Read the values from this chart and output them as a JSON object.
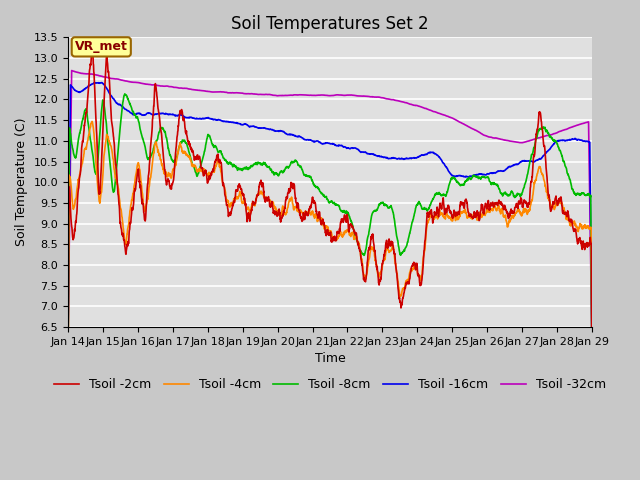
{
  "title": "Soil Temperatures Set 2",
  "xlabel": "Time",
  "ylabel": "Soil Temperature (C)",
  "ylim": [
    6.5,
    13.5
  ],
  "x_tick_labels": [
    "Jan 14",
    "Jan 15",
    "Jan 16",
    "Jan 17",
    "Jan 18",
    "Jan 19",
    "Jan 20",
    "Jan 21",
    "Jan 22",
    "Jan 23",
    "Jan 24",
    "Jan 25",
    "Jan 26",
    "Jan 27",
    "Jan 28",
    "Jan 29"
  ],
  "colors": {
    "Tsoil -2cm": "#cc0000",
    "Tsoil -4cm": "#ff8800",
    "Tsoil -8cm": "#00bb00",
    "Tsoil -16cm": "#0000ee",
    "Tsoil -32cm": "#bb00bb"
  },
  "fig_bg": "#c8c8c8",
  "plot_bg": "#e0e0e0",
  "annotation_text": "VR_met",
  "annotation_box_facecolor": "#ffff99",
  "annotation_box_edgecolor": "#996600",
  "annotation_text_color": "#880000",
  "title_fontsize": 12,
  "axis_label_fontsize": 9,
  "tick_fontsize": 8,
  "legend_fontsize": 9,
  "linewidth": 1.2
}
